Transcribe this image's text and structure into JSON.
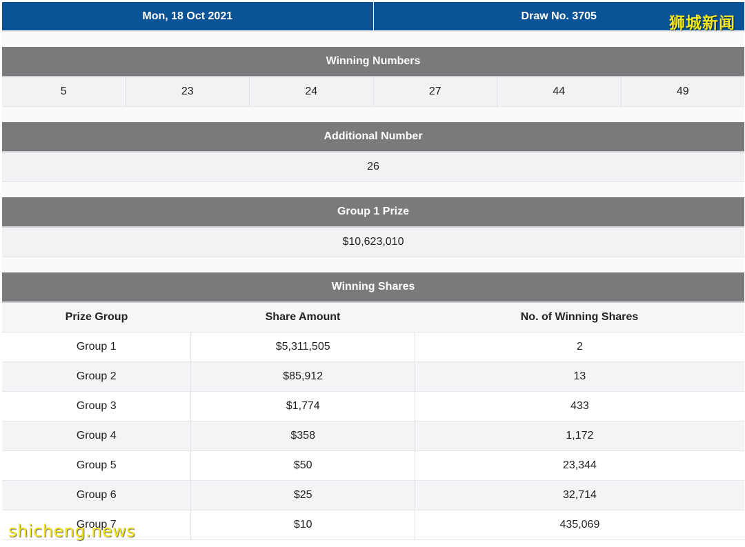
{
  "header": {
    "date": "Mon, 18 Oct 2021",
    "draw": "Draw No. 3705"
  },
  "winning_numbers": {
    "title": "Winning Numbers",
    "numbers": [
      "5",
      "23",
      "24",
      "27",
      "44",
      "49"
    ]
  },
  "additional_number": {
    "title": "Additional Number",
    "value": "26"
  },
  "group1_prize": {
    "title": "Group 1 Prize",
    "value": "$10,623,010"
  },
  "winning_shares": {
    "title": "Winning Shares",
    "columns": [
      "Prize Group",
      "Share Amount",
      "No. of Winning Shares"
    ],
    "rows": [
      {
        "group": "Group 1",
        "amount": "$5,311,505",
        "shares": "2"
      },
      {
        "group": "Group 2",
        "amount": "$85,912",
        "shares": "13"
      },
      {
        "group": "Group 3",
        "amount": "$1,774",
        "shares": "433"
      },
      {
        "group": "Group 4",
        "amount": "$358",
        "shares": "1,172"
      },
      {
        "group": "Group 5",
        "amount": "$50",
        "shares": "23,344"
      },
      {
        "group": "Group 6",
        "amount": "$25",
        "shares": "32,714"
      },
      {
        "group": "Group 7",
        "amount": "$10",
        "shares": "435,069"
      }
    ]
  },
  "watermarks": {
    "top_right": "狮城新闻",
    "bottom_left": "shicheng.news"
  },
  "colors": {
    "header_bg": "#0a5397",
    "section_bg": "#7a797b",
    "watermark": "#f4e61c"
  }
}
